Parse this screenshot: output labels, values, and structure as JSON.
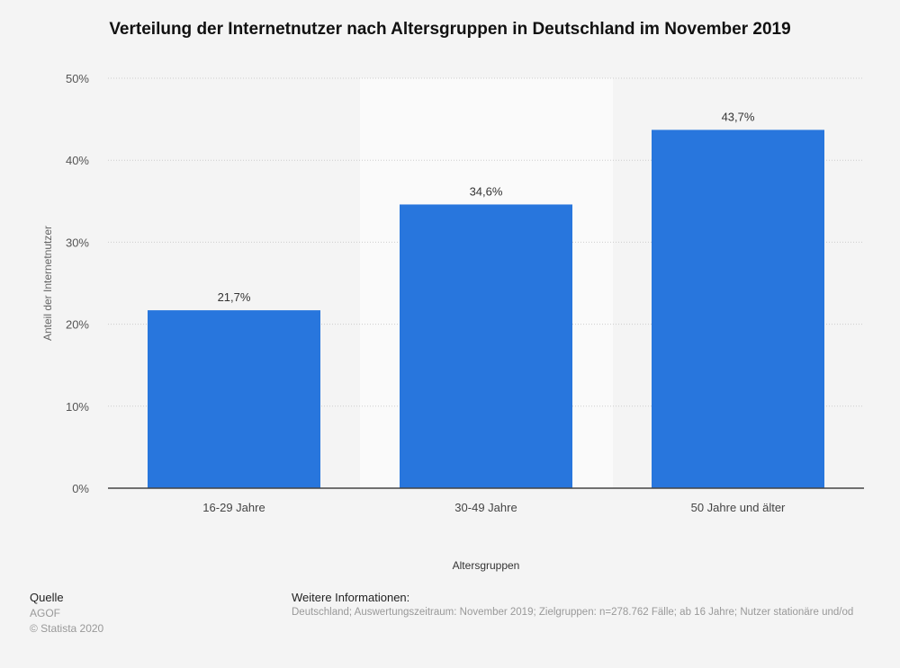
{
  "chart_data": {
    "type": "bar",
    "title": "Verteilung der Internetnutzer nach Altersgruppen in Deutschland im November 2019",
    "categories": [
      "16-29 Jahre",
      "30-49 Jahre",
      "50 Jahre und älter"
    ],
    "values": [
      21.7,
      34.6,
      43.7
    ],
    "value_labels": [
      "21,7%",
      "34,6%",
      "43,7%"
    ],
    "xlabel": "Altersgruppen",
    "ylabel": "Anteil der Internetnutzer",
    "ylim": [
      0,
      50
    ],
    "yticks": [
      0,
      10,
      20,
      30,
      40,
      50
    ],
    "ytick_labels": [
      "0%",
      "10%",
      "20%",
      "30%",
      "40%",
      "50%"
    ],
    "grid": true,
    "highlighted_category": 1,
    "bar_color": "#2876dd"
  },
  "footer": {
    "source_label": "Quelle",
    "source": "AGOF",
    "copyright": "© Statista 2020",
    "info_label": "Weitere Informationen:",
    "info": "Deutschland; Auswertungszeitraum: November 2019; Zielgruppen: n=278.762 Fälle; ab 16 Jahre; Nutzer stationäre und/od"
  }
}
